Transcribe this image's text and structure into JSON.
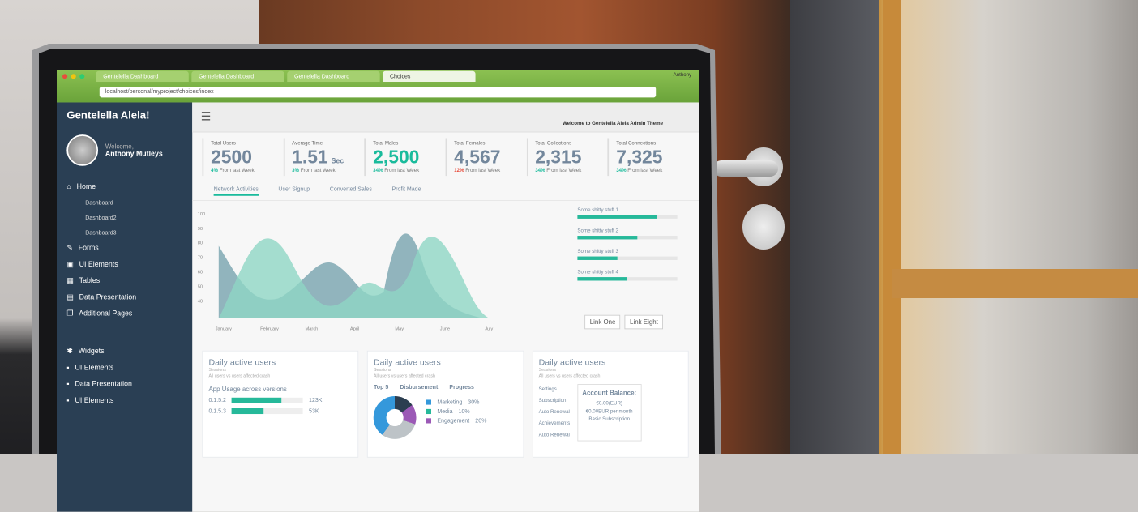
{
  "browser": {
    "tabs": [
      "Gentelella Dashboard",
      "Gentelella Dashboard",
      "Gentelella Dashboard",
      "Choices"
    ],
    "url": "localhost/personal/myproject/choices/index",
    "user": "Anthony"
  },
  "sidebar": {
    "brand": "Gentelella Alela!",
    "welcome": "Welcome,",
    "user_name": "Anthony Mutleys",
    "items": [
      {
        "label": "Home",
        "icon": "home-icon"
      },
      {
        "label": "Dashboard",
        "sub": true
      },
      {
        "label": "Dashboard2",
        "sub": true
      },
      {
        "label": "Dashboard3",
        "sub": true
      },
      {
        "label": "Forms",
        "icon": "edit-icon"
      },
      {
        "label": "UI Elements",
        "icon": "desktop-icon"
      },
      {
        "label": "Tables",
        "icon": "table-icon"
      },
      {
        "label": "Data Presentation",
        "icon": "chart-icon"
      },
      {
        "label": "Additional Pages",
        "icon": "clone-icon"
      },
      {
        "label": "Widgets",
        "icon": "bug-icon"
      },
      {
        "label": "UI Elements",
        "icon": "windows-icon"
      },
      {
        "label": "Data Presentation",
        "icon": "sitemap-icon"
      },
      {
        "label": "UI Elements",
        "icon": "laptop-icon"
      }
    ]
  },
  "topbar": {
    "message": "Welcome to Gentelella Alela Admin Theme"
  },
  "stats": [
    {
      "label": "Total Users",
      "value": "2500",
      "change": "4%",
      "note": "From last Week",
      "trend": "up"
    },
    {
      "label": "Average Time",
      "value": "1.51",
      "unit": "Sec",
      "change": "3%",
      "note": "From last Week",
      "trend": "up"
    },
    {
      "label": "Total Males",
      "value": "2,500",
      "change": "34%",
      "note": "From last Week",
      "trend": "up"
    },
    {
      "label": "Total Females",
      "value": "4,567",
      "change": "12%",
      "note": "From last Week",
      "trend": "down"
    },
    {
      "label": "Total Collections",
      "value": "2,315",
      "change": "34%",
      "note": "From last Week",
      "trend": "up"
    },
    {
      "label": "Total Connections",
      "value": "7,325",
      "change": "34%",
      "note": "From last Week",
      "trend": "up"
    }
  ],
  "chart_tabs": [
    "Network Activities",
    "User Signup",
    "Converted Sales",
    "Profit Made"
  ],
  "chart": {
    "y_ticks": [
      "100",
      "90",
      "80",
      "70",
      "60",
      "50",
      "40"
    ],
    "x_ticks": [
      "January",
      "February",
      "March",
      "April",
      "May",
      "June",
      "July"
    ],
    "side_items": [
      {
        "label": "Some shitty stuff 1",
        "percent": 80
      },
      {
        "label": "Some shitty stuff 2",
        "percent": 60
      },
      {
        "label": "Some shitty stuff 3",
        "percent": 40
      },
      {
        "label": "Some shitty stuff 4",
        "percent": 50
      }
    ],
    "buttons": [
      "Link One",
      "Link Eight"
    ]
  },
  "panels": [
    {
      "title": "Daily active users",
      "sub": "Sessions",
      "note": "All users vs users affected crash",
      "heading": "App Usage across versions",
      "rows": [
        {
          "label": "0.1.5.2",
          "value": "123K",
          "percent": 70
        },
        {
          "label": "0.1.5.3",
          "value": "53K",
          "percent": 45
        }
      ]
    },
    {
      "title": "Daily active users",
      "sub": "Sessions",
      "note": "All users vs users affected crash",
      "cols": [
        "Top 5",
        "Disbursement",
        "Progress"
      ],
      "legend": [
        {
          "label": "Marketing",
          "value": "30%",
          "color": "#3498db"
        },
        {
          "label": "Media",
          "value": "10%",
          "color": "#26b99a"
        },
        {
          "label": "Engagement",
          "value": "20%",
          "color": "#9b59b6"
        }
      ]
    },
    {
      "title": "Daily active users",
      "sub": "Sessions",
      "note": "All users vs users affected crash",
      "items": [
        "Settings",
        "Subscription",
        "Auto Renewal",
        "Achievements",
        "Auto Renewal"
      ],
      "account_title": "Account Balance:",
      "account_line1": "€0.00(EUR)",
      "account_line2": "€0.00EUR per month",
      "account_line3": "Basic Subscription"
    }
  ]
}
